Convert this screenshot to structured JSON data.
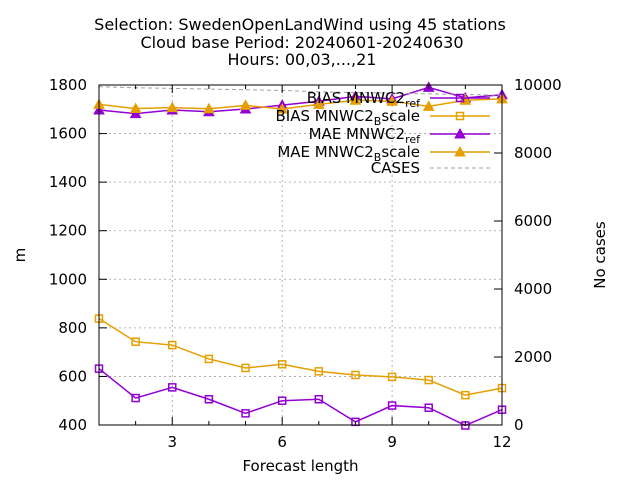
{
  "chart_data": {
    "type": "line",
    "title": [
      "Selection: SwedenOpenLandWind using    45 stations",
      "Cloud base   Period: 20240601-20240630",
      "Hours: 00,03,...,21"
    ],
    "xlabel": "Forecast length",
    "ylabel": "m",
    "y2label": "No cases",
    "xlim": [
      1,
      12
    ],
    "ylim": [
      400,
      1800
    ],
    "y2lim": [
      0,
      10000
    ],
    "xticks": [
      "3",
      "6",
      "9",
      "12"
    ],
    "xtick_values": [
      3,
      6,
      9,
      12
    ],
    "yticks": [
      "400",
      "600",
      "800",
      "1000",
      "1200",
      "1400",
      "1600",
      "1800"
    ],
    "ytick_values": [
      400,
      600,
      800,
      1000,
      1200,
      1400,
      1600,
      1800
    ],
    "y2ticks": [
      "0",
      "2000",
      "4000",
      "6000",
      "8000",
      "10000"
    ],
    "y2tick_values": [
      0,
      2000,
      4000,
      6000,
      8000,
      10000
    ],
    "grid": true,
    "legend_position": "top-right",
    "x": [
      1,
      2,
      3,
      4,
      5,
      6,
      7,
      8,
      9,
      10,
      11,
      12
    ],
    "series": [
      {
        "name": "BIAS MNWC2_ref",
        "legend_parts": [
          "BIAS MNWC2",
          "ref"
        ],
        "color": "#9400d3",
        "marker": "square",
        "axis": "y",
        "values": [
          632,
          511,
          555,
          506,
          448,
          500,
          506,
          413,
          480,
          471,
          398,
          463
        ]
      },
      {
        "name": "BIAS MNWC2_Bscale",
        "legend_parts": [
          "BIAS MNWC2",
          "B",
          "scale"
        ],
        "color": "#e69f00",
        "marker": "square",
        "axis": "y",
        "values": [
          838,
          743,
          729,
          672,
          635,
          650,
          621,
          606,
          598,
          585,
          523,
          552
        ]
      },
      {
        "name": "MAE MNWC2_ref",
        "legend_parts": [
          "MAE MNWC2",
          "ref"
        ],
        "color": "#9400d3",
        "marker": "triangle",
        "axis": "y",
        "values": [
          1697,
          1682,
          1697,
          1690,
          1701,
          1717,
          1733,
          1753,
          1743,
          1790,
          1747,
          1760
        ]
      },
      {
        "name": "MAE MNWC2_Bscale",
        "legend_parts": [
          "MAE MNWC2",
          "B",
          "scale"
        ],
        "color": "#e69f00",
        "marker": "triangle",
        "axis": "y",
        "values": [
          1720,
          1703,
          1707,
          1702,
          1716,
          1701,
          1720,
          1737,
          1733,
          1712,
          1737,
          1743
        ]
      },
      {
        "name": "CASES",
        "legend_parts": [
          "CASES"
        ],
        "color": "#a0a0a0",
        "marker": "none",
        "dashed": true,
        "axis": "y2",
        "values": [
          9950,
          9920,
          9900,
          9880,
          9860,
          9840,
          9800,
          9780,
          9760,
          9740,
          9720,
          9700
        ]
      }
    ]
  }
}
